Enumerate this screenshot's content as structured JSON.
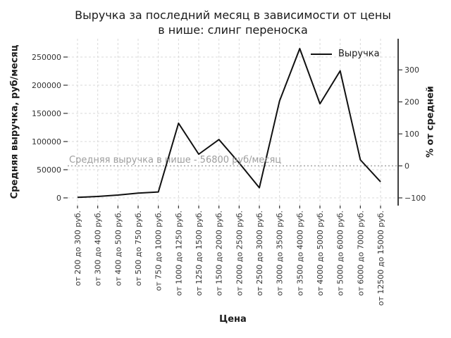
{
  "header": {
    "title": "Выручка за последний месяц в зависимости от цены\nв нише: слинг переноска"
  },
  "chart_data": {
    "type": "line",
    "title": "Выручка за последний месяц в зависимости от цены в нише: слинг переноска",
    "xlabel": "Цена",
    "ylabel_left": "Средняя выручка, руб/месяц",
    "ylabel_right": "% от средней",
    "legend": {
      "position": "upper right",
      "entries": [
        "Выручка"
      ]
    },
    "categories": [
      "от 200 до 300 руб.",
      "от 300 до 400 руб.",
      "от 400 до 500 руб.",
      "от 500 до 750 руб.",
      "от 750 до 1000 руб.",
      "от 1000 до 1250 руб.",
      "от 1250 до 1500 руб.",
      "от 1500 до 2000 руб.",
      "от 2000 до 2500 руб.",
      "от 2500 до 3000 руб.",
      "от 3000 до 3500 руб.",
      "от 3500 до 4000 руб.",
      "от 4000 до 5000 руб.",
      "от 5000 до 6000 руб.",
      "от 6000 до 7000 руб.",
      "от 12500 до 15000 руб."
    ],
    "series": [
      {
        "name": "Выручка",
        "color": "#111111",
        "values": [
          1000,
          2500,
          5000,
          8500,
          10500,
          132500,
          77500,
          103500,
          62000,
          18000,
          172000,
          265000,
          167000,
          225500,
          67500,
          28500
        ]
      }
    ],
    "left_ticks": [
      0,
      50000,
      100000,
      150000,
      200000,
      250000
    ],
    "right_ticks": [
      -100,
      0,
      100,
      200,
      300
    ],
    "ylim_left": [
      -14000,
      282000
    ],
    "grid": true,
    "average_line": {
      "value": 56800,
      "label": "Средняя выручка в нише - 56800 руб/месяц",
      "style": "dotted",
      "color": "#a6a6a6"
    },
    "colors": {
      "line": "#111111",
      "grid": "#d9d9d9",
      "text": "#1a1a1a",
      "tick_text": "#333333",
      "annotation": "#9e9e9e"
    }
  }
}
